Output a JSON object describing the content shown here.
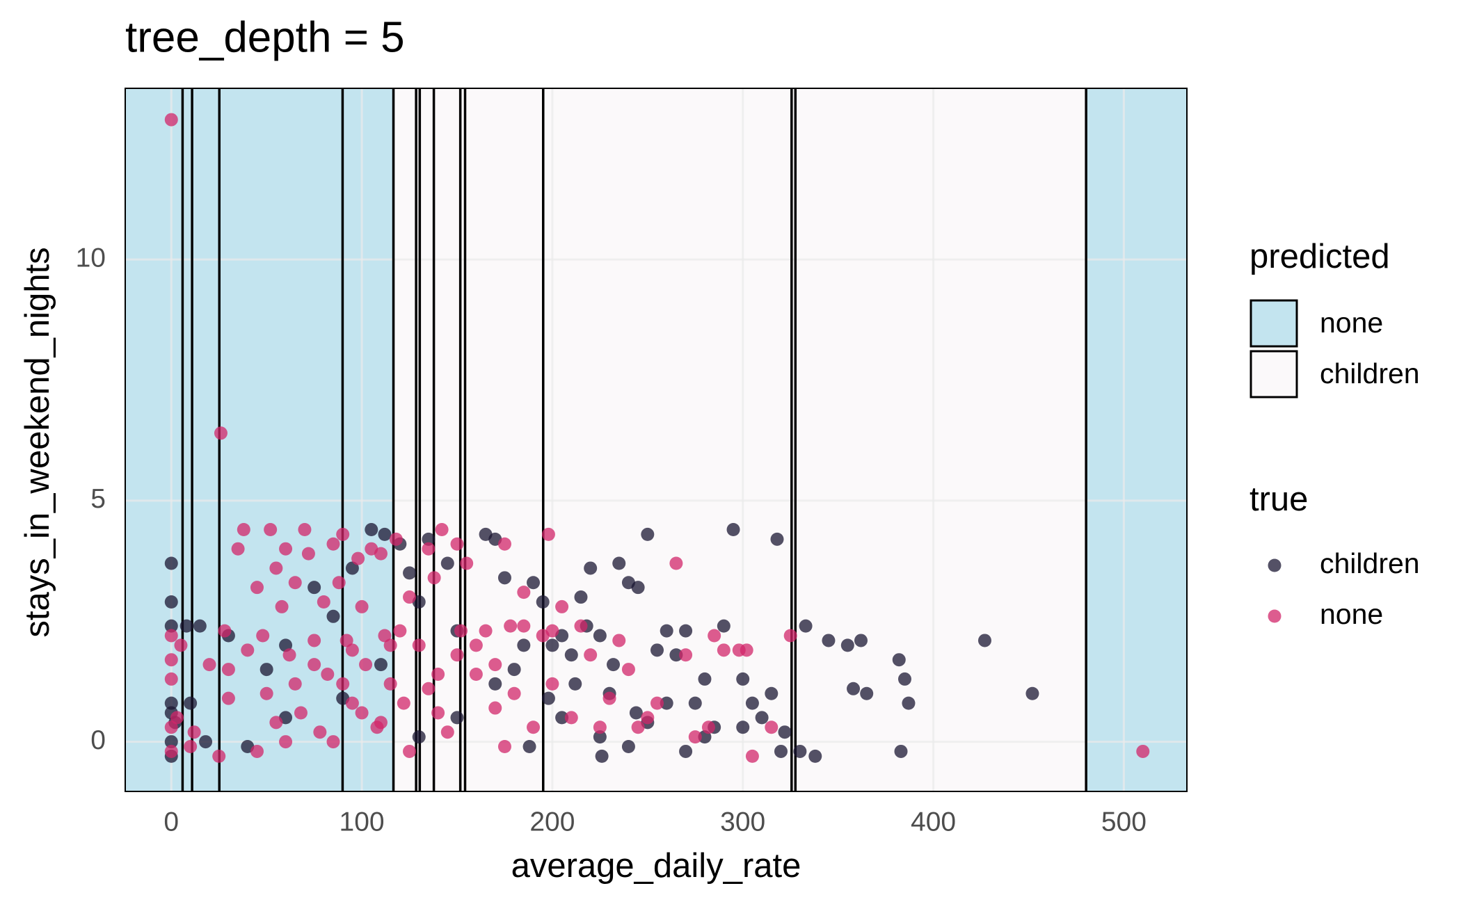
{
  "chart_data": {
    "type": "scatter",
    "title": "tree_depth = 5",
    "x_label": "average_daily_rate",
    "y_label": "stays_in_weekend_nights",
    "xlim": [
      -24.2,
      533.1
    ],
    "ylim": [
      -1.03,
      13.55
    ],
    "xticks": [
      0,
      100,
      200,
      300,
      400,
      500
    ],
    "yticks": [
      0,
      5,
      10
    ],
    "grid": true,
    "predicted_title": "predicted",
    "predicted_legend": [
      {
        "name": "none",
        "color": "#c3e4ef"
      },
      {
        "name": "children",
        "color": "#fbf9fa"
      }
    ],
    "regions": [
      {
        "predicted": 0,
        "from": -24.2,
        "to": 116.6
      },
      {
        "predicted": 1,
        "from": 116.6,
        "to": 480.2
      },
      {
        "predicted": 0,
        "from": 480.2,
        "to": 533.1
      }
    ],
    "split_lines": [
      5.9,
      10.9,
      25.2,
      89.9,
      116.6,
      128.5,
      130.4,
      137.8,
      151.7,
      154.2,
      195.2,
      325.6,
      327.6,
      480.2
    ],
    "legend_title": "true",
    "series": [
      {
        "name": "children",
        "color": "#1b1733",
        "x": [
          0,
          0,
          0,
          0,
          0,
          0,
          0,
          2,
          8,
          15,
          18,
          10,
          30,
          50,
          60,
          75,
          85,
          95,
          105,
          112,
          120,
          125,
          130,
          135,
          145,
          150,
          165,
          170,
          175,
          180,
          185,
          190,
          195,
          200,
          205,
          210,
          215,
          220,
          225,
          230,
          235,
          240,
          245,
          250,
          255,
          260,
          265,
          270,
          275,
          280,
          285,
          290,
          295,
          300,
          305,
          310,
          315,
          318,
          320,
          322,
          330,
          333,
          338,
          345,
          355,
          358,
          362,
          365,
          382,
          383,
          385,
          387,
          427,
          452,
          225,
          240,
          250,
          212,
          205,
          198,
          188,
          260,
          270,
          280,
          300,
          150,
          110,
          90,
          60,
          40,
          130,
          170,
          232,
          218,
          244,
          226
        ],
        "values": [
          3.7,
          2.9,
          2.4,
          0.8,
          0.6,
          0,
          -0.3,
          0.4,
          2.4,
          2.4,
          0,
          0.8,
          2.2,
          1.5,
          0.5,
          3.2,
          2.6,
          3.6,
          4.4,
          4.3,
          4.1,
          3.5,
          2.9,
          4.2,
          3.7,
          2.3,
          4.3,
          4.2,
          3.4,
          1.5,
          2.0,
          3.3,
          2.9,
          2.0,
          0.5,
          1.8,
          3.0,
          3.6,
          2.2,
          1.0,
          3.7,
          3.3,
          3.2,
          4.3,
          1.9,
          0.8,
          1.8,
          2.3,
          0.8,
          1.3,
          0.3,
          2.4,
          4.4,
          1.3,
          0.8,
          0.5,
          1.0,
          4.2,
          -0.2,
          0.2,
          -0.2,
          2.4,
          -0.3,
          2.1,
          2.0,
          1.1,
          2.1,
          1.0,
          1.7,
          -0.2,
          1.3,
          0.8,
          2.1,
          1.0,
          0.1,
          -0.1,
          0.4,
          1.2,
          2.2,
          0.9,
          -0.1,
          2.3,
          -0.2,
          0.1,
          0.3,
          0.5,
          1.6,
          0.9,
          2.0,
          -0.1,
          0.1,
          1.2,
          1.6,
          2.4,
          0.6,
          -0.3
        ]
      },
      {
        "name": "none",
        "color": "#d2256a",
        "x": [
          0,
          26,
          0,
          0,
          0,
          0,
          0,
          5,
          12,
          20,
          25,
          28,
          35,
          38,
          45,
          48,
          50,
          52,
          55,
          58,
          60,
          62,
          65,
          68,
          70,
          72,
          75,
          78,
          80,
          82,
          85,
          88,
          90,
          92,
          95,
          98,
          100,
          102,
          105,
          108,
          110,
          112,
          115,
          118,
          120,
          122,
          125,
          130,
          135,
          138,
          140,
          142,
          145,
          150,
          152,
          155,
          160,
          165,
          170,
          175,
          178,
          180,
          185,
          190,
          195,
          198,
          200,
          205,
          210,
          215,
          220,
          225,
          230,
          235,
          240,
          245,
          250,
          255,
          265,
          270,
          275,
          282,
          285,
          290,
          298,
          302,
          305,
          315,
          325,
          510,
          30,
          40,
          55,
          65,
          85,
          100,
          115,
          125,
          140,
          160,
          175,
          200,
          45,
          75,
          95,
          135,
          10,
          3,
          150,
          110,
          60,
          90,
          30,
          170,
          185
        ],
        "values": [
          12.9,
          6.4,
          2.2,
          1.7,
          1.3,
          0.3,
          -0.2,
          2.0,
          0.2,
          1.6,
          -0.3,
          2.3,
          4.0,
          4.4,
          3.2,
          2.2,
          1.0,
          4.4,
          3.6,
          2.8,
          4.0,
          1.8,
          3.3,
          0.6,
          4.4,
          3.9,
          2.1,
          0.2,
          2.9,
          1.4,
          4.1,
          3.3,
          4.3,
          2.1,
          0.8,
          3.8,
          2.8,
          1.6,
          4.0,
          0.3,
          3.9,
          2.2,
          1.2,
          4.2,
          2.3,
          0.8,
          3.0,
          2.0,
          4.0,
          3.4,
          1.4,
          4.4,
          0.2,
          4.1,
          2.3,
          3.7,
          1.4,
          2.3,
          0.7,
          4.1,
          2.4,
          1.0,
          3.1,
          0.3,
          2.2,
          4.3,
          1.2,
          2.8,
          0.5,
          2.4,
          1.8,
          0.3,
          0.9,
          2.1,
          1.5,
          0.3,
          0.5,
          0.8,
          3.7,
          1.8,
          0.1,
          0.3,
          2.2,
          1.9,
          1.9,
          1.9,
          -0.3,
          0.3,
          2.2,
          -0.2,
          0.9,
          1.9,
          0.4,
          1.2,
          0.0,
          0.6,
          2.0,
          -0.2,
          0.6,
          2.0,
          -0.1,
          2.3,
          -0.2,
          1.6,
          1.9,
          1.1,
          -0.1,
          0.5,
          1.8,
          0.4,
          0.0,
          1.2,
          1.5,
          1.6,
          2.4
        ]
      }
    ]
  }
}
